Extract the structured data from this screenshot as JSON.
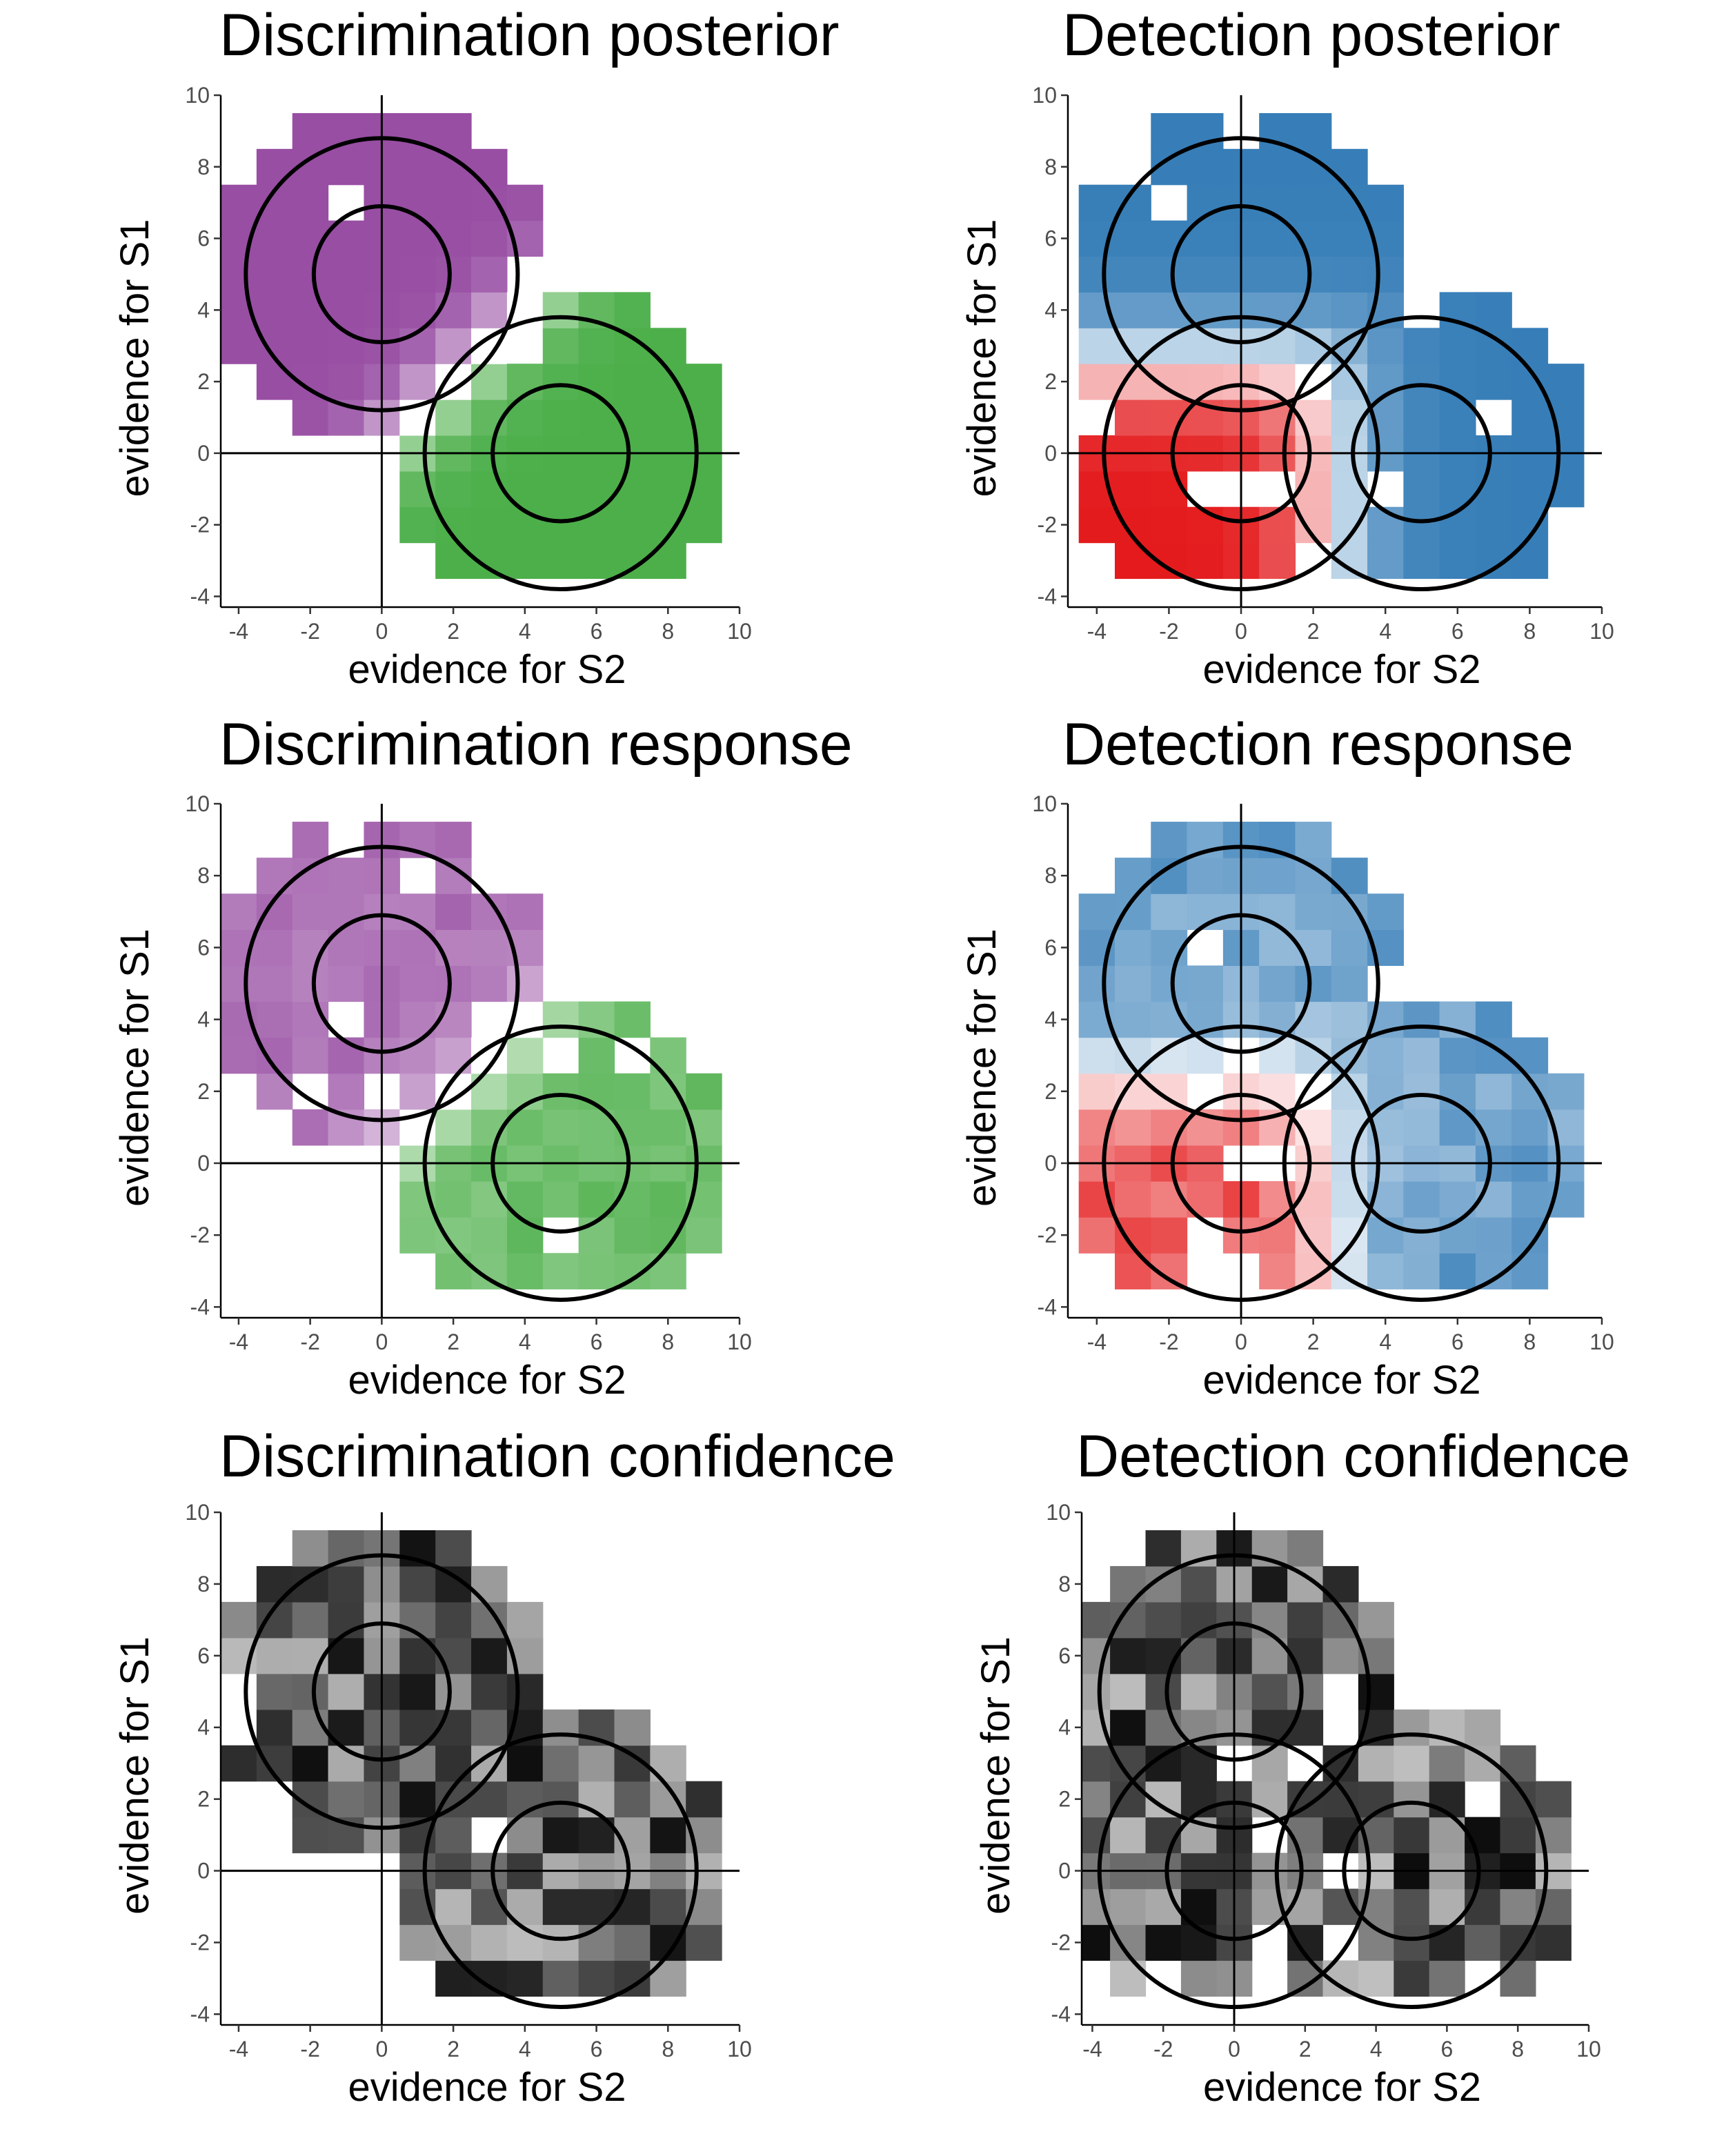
{
  "figure": {
    "panels": [
      {
        "key": "disc_post",
        "title": "Discrimination posterior",
        "scheme": "purple_green"
      },
      {
        "key": "det_post",
        "title": "Detection posterior",
        "scheme": "blue_red"
      },
      {
        "key": "disc_resp",
        "title": "Discrimination response",
        "scheme": "purple_green"
      },
      {
        "key": "det_resp",
        "title": "Detection response",
        "scheme": "blue_red"
      },
      {
        "key": "disc_conf",
        "title": "Discrimination confidence",
        "scheme": "gray"
      },
      {
        "key": "det_conf",
        "title": "Detection confidence",
        "scheme": "gray"
      }
    ],
    "colors": {
      "purple": "#984ea3",
      "green": "#4daf4a",
      "blue": "#377eb8",
      "red": "#e41a1c",
      "black": "#000000"
    }
  },
  "chart_data": [
    {
      "type": "heatmap",
      "title": "Discrimination posterior",
      "xlabel": "evidence for S2",
      "ylabel": "evidence for S1",
      "xlim": [
        -4.5,
        10
      ],
      "ylim": [
        -4.3,
        10
      ],
      "xticks": [
        -4,
        -2,
        0,
        2,
        4,
        6,
        8,
        10
      ],
      "yticks": [
        -4,
        -2,
        0,
        2,
        4,
        6,
        8,
        10
      ],
      "tick_labels": [
        "-4",
        "-2",
        "0",
        "2",
        "4",
        "6",
        "8",
        "10"
      ],
      "grid": false,
      "reference_lines": {
        "x": 0,
        "y": 0
      },
      "circles": [
        {
          "center": [
            0,
            5
          ],
          "radius": [
            1.9,
            3.8
          ]
        },
        {
          "center": [
            5,
            0
          ],
          "radius": [
            1.9,
            3.8
          ]
        }
      ],
      "cell_size": 1,
      "color_scale": {
        "negative": "#984ea3",
        "positive": "#4daf4a",
        "description": "purple = posterior favours S1, green = posterior favours S2"
      },
      "values_description": "signed value in [-1,1] per cell (negative = S1, positive = S2), cell centres in evidence units"
    },
    {
      "type": "heatmap",
      "title": "Detection posterior",
      "xlabel": "evidence for S2",
      "ylabel": "evidence for S1",
      "xlim": [
        -4.8,
        10
      ],
      "ylim": [
        -4.3,
        10
      ],
      "xticks": [
        -4,
        -2,
        0,
        2,
        4,
        6,
        8,
        10
      ],
      "yticks": [
        -4,
        -2,
        0,
        2,
        4,
        6,
        8,
        10
      ],
      "tick_labels": [
        "-4",
        "-2",
        "0",
        "2",
        "4",
        "6",
        "8",
        "10"
      ],
      "grid": false,
      "reference_lines": {
        "x": 0,
        "y": 0
      },
      "circles": [
        {
          "center": [
            0,
            5
          ],
          "radius": [
            1.9,
            3.8
          ]
        },
        {
          "center": [
            0,
            0
          ],
          "radius": [
            1.9,
            3.8
          ]
        },
        {
          "center": [
            5,
            0
          ],
          "radius": [
            1.9,
            3.8
          ]
        }
      ],
      "cell_size": 1,
      "color_scale": {
        "negative": "#e41a1c",
        "positive": "#377eb8",
        "description": "red = posterior favours absent, blue = posterior favours present"
      },
      "values_description": "signed value in [-1,1] per cell (negative = absent, positive = present)"
    },
    {
      "type": "heatmap",
      "title": "Discrimination response",
      "xlabel": "evidence for S2",
      "ylabel": "evidence for S1",
      "xlim": [
        -4.5,
        10
      ],
      "ylim": [
        -4.3,
        10
      ],
      "xticks": [
        -4,
        -2,
        0,
        2,
        4,
        6,
        8,
        10
      ],
      "yticks": [
        -4,
        -2,
        0,
        2,
        4,
        6,
        8,
        10
      ],
      "tick_labels": [
        "-4",
        "-2",
        "0",
        "2",
        "4",
        "6",
        "8",
        "10"
      ],
      "grid": false,
      "reference_lines": {
        "x": 0,
        "y": 0
      },
      "circles": [
        {
          "center": [
            0,
            5
          ],
          "radius": [
            1.9,
            3.8
          ]
        },
        {
          "center": [
            5,
            0
          ],
          "radius": [
            1.9,
            3.8
          ]
        }
      ],
      "cell_size": 1,
      "color_scale": {
        "negative": "#984ea3",
        "positive": "#4daf4a",
        "description": "purple = responds S1, green = responds S2"
      },
      "values_description": "signed response proportion per cell"
    },
    {
      "type": "heatmap",
      "title": "Detection response",
      "xlabel": "evidence for S2",
      "ylabel": "evidence for S1",
      "xlim": [
        -4.8,
        10
      ],
      "ylim": [
        -4.3,
        10
      ],
      "xticks": [
        -4,
        -2,
        0,
        2,
        4,
        6,
        8,
        10
      ],
      "yticks": [
        -4,
        -2,
        0,
        2,
        4,
        6,
        8,
        10
      ],
      "tick_labels": [
        "-4",
        "-2",
        "0",
        "2",
        "4",
        "6",
        "8",
        "10"
      ],
      "grid": false,
      "reference_lines": {
        "x": 0,
        "y": 0
      },
      "circles": [
        {
          "center": [
            0,
            5
          ],
          "radius": [
            1.9,
            3.8
          ]
        },
        {
          "center": [
            0,
            0
          ],
          "radius": [
            1.9,
            3.8
          ]
        },
        {
          "center": [
            5,
            0
          ],
          "radius": [
            1.9,
            3.8
          ]
        }
      ],
      "cell_size": 1,
      "color_scale": {
        "negative": "#e41a1c",
        "positive": "#377eb8",
        "description": "red = responds absent, blue = responds present"
      },
      "values_description": "signed response proportion per cell"
    },
    {
      "type": "heatmap",
      "title": "Discrimination confidence",
      "xlabel": "evidence for S2",
      "ylabel": "evidence for S1",
      "xlim": [
        -4.5,
        10
      ],
      "ylim": [
        -4.3,
        10
      ],
      "xticks": [
        -4,
        -2,
        0,
        2,
        4,
        6,
        8,
        10
      ],
      "yticks": [
        -4,
        -2,
        0,
        2,
        4,
        6,
        8,
        10
      ],
      "tick_labels": [
        "-4",
        "-2",
        "0",
        "2",
        "4",
        "6",
        "8",
        "10"
      ],
      "grid": false,
      "reference_lines": {
        "x": 0,
        "y": 0
      },
      "circles": [
        {
          "center": [
            0,
            5
          ],
          "radius": [
            1.9,
            3.8
          ]
        },
        {
          "center": [
            5,
            0
          ],
          "radius": [
            1.9,
            3.8
          ]
        }
      ],
      "cell_size": 1,
      "color_scale": {
        "low": "#ffffff",
        "high": "#000000",
        "description": "darker = higher confidence"
      },
      "values_description": "confidence in [0,1] per cell"
    },
    {
      "type": "heatmap",
      "title": "Detection confidence",
      "xlabel": "evidence for S2",
      "ylabel": "evidence for S1",
      "xlim": [
        -4.3,
        10
      ],
      "ylim": [
        -4.3,
        10
      ],
      "xticks": [
        -4,
        -2,
        0,
        2,
        4,
        6,
        8,
        10
      ],
      "yticks": [
        -4,
        -2,
        0,
        2,
        4,
        6,
        8,
        10
      ],
      "tick_labels": [
        "-4",
        "-2",
        "0",
        "2",
        "4",
        "6",
        "8",
        "10"
      ],
      "grid": false,
      "reference_lines": {
        "x": 0,
        "y": 0
      },
      "circles": [
        {
          "center": [
            0,
            5
          ],
          "radius": [
            1.9,
            3.8
          ]
        },
        {
          "center": [
            0,
            0
          ],
          "radius": [
            1.9,
            3.8
          ]
        },
        {
          "center": [
            5,
            0
          ],
          "radius": [
            1.9,
            3.8
          ]
        }
      ],
      "cell_size": 1,
      "color_scale": {
        "low": "#ffffff",
        "high": "#000000",
        "description": "darker = higher confidence"
      },
      "values_description": "confidence in [0,1] per cell"
    }
  ]
}
